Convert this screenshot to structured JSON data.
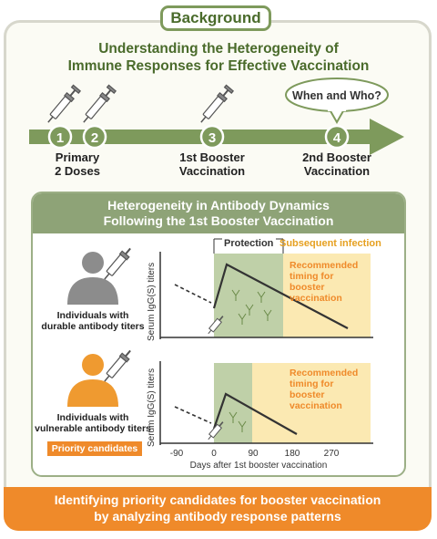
{
  "header": {
    "badge": "Background",
    "title_line1": "Understanding the Heterogeneity of",
    "title_line2": "Immune Responses for Effective Vaccination"
  },
  "timeline": {
    "bubble": "When and Who?",
    "steps": [
      {
        "num": "1"
      },
      {
        "num": "2"
      },
      {
        "num": "3"
      },
      {
        "num": "4"
      }
    ],
    "label_primary_1": "Primary",
    "label_primary_2": "2 Doses",
    "label_booster1_1": "1st Booster",
    "label_booster1_2": "Vaccination",
    "label_booster2_1": "2nd Booster",
    "label_booster2_2": "Vaccination"
  },
  "panel": {
    "title_line1": "Heterogeneity in Antibody Dynamics",
    "title_line2": "Following the 1st Booster Vaccination",
    "protection": "Protection",
    "subsequent": "Subsequent infection",
    "recommended_1": "Recommended",
    "recommended_2": "timing for",
    "recommended_3": "booster",
    "recommended_4": "vaccination",
    "ylabel": "Serum IgG(S) titers",
    "xlabel": "Days after 1st booster vaccination",
    "xticks": [
      "-90",
      "0",
      "90",
      "180",
      "270"
    ],
    "durable_1": "Individuals with",
    "durable_2": "durable antibody titers",
    "vulnerable_1": "Individuals with",
    "vulnerable_2": "vulnerable antibody titers",
    "priority": "Priority candidates"
  },
  "footer": {
    "line1": "Identifying priority candidates for booster vaccination",
    "line2": "by analyzing antibody response patterns"
  },
  "colors": {
    "green_dark": "#4a6b2b",
    "green_arrow": "#7e9a5c",
    "orange": "#ef8a2a",
    "yellow_zone": "#fbe9b2",
    "green_zone": "#bfd0a8"
  }
}
